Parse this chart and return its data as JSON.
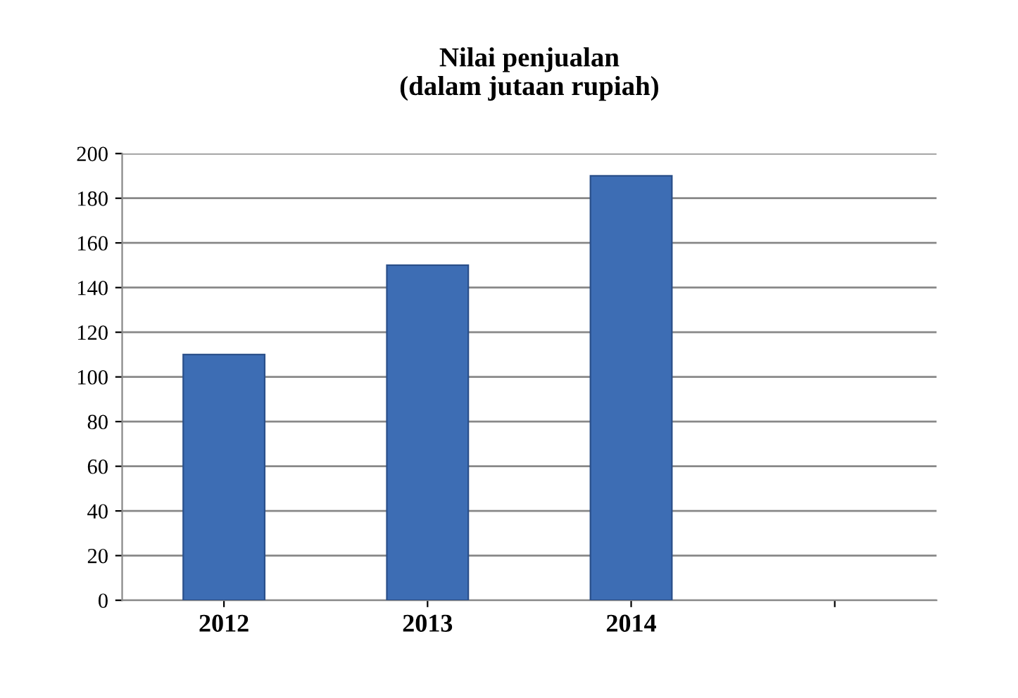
{
  "chart_data": {
    "type": "bar",
    "title": "Nilai penjualan\n(dalam jutaan rupiah)",
    "categories": [
      "2012",
      "2013",
      "2014",
      null
    ],
    "values": [
      110,
      150,
      190,
      null
    ],
    "color": "#3d6db4",
    "ylim": [
      0,
      200
    ],
    "yticks": [
      0,
      20,
      40,
      60,
      80,
      100,
      120,
      140,
      160,
      180,
      200
    ],
    "grid": "y"
  }
}
